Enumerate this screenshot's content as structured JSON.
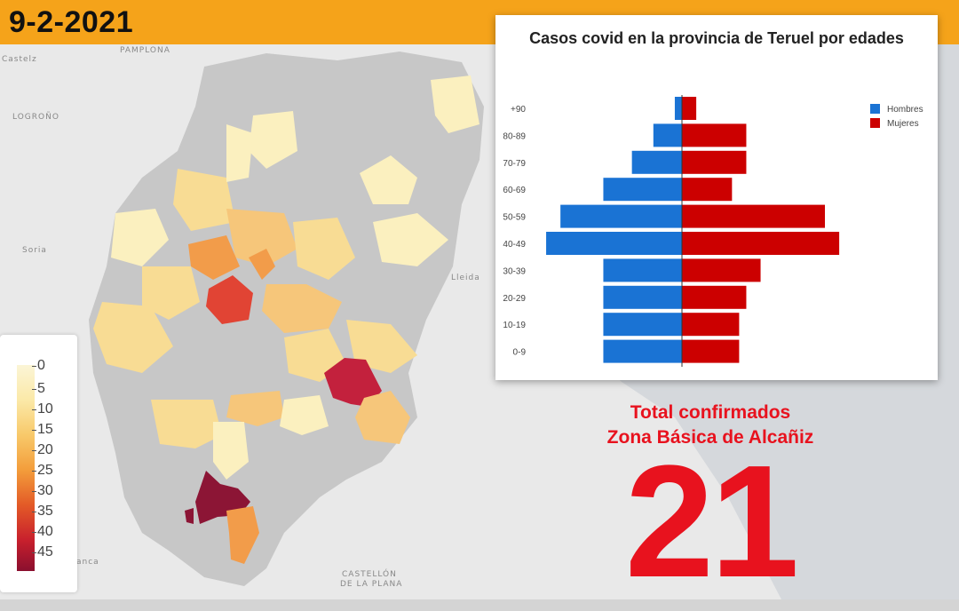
{
  "header": {
    "date": "9-2-2021"
  },
  "map": {
    "place_labels": [
      "PAMPLONA",
      "LOGROÑO",
      "Soria",
      "Lleida",
      "CASTELLÓN",
      "DE LA PLANA",
      "Castelz",
      "anca"
    ],
    "legend_ticks": [
      "0",
      "5",
      "10",
      "15",
      "20",
      "25",
      "30",
      "35",
      "40",
      "45"
    ],
    "colors": {
      "gray": "#c7c7c7",
      "light": "#fbf0bf",
      "yellow": "#f8dc94",
      "peach": "#f6c67a",
      "orange": "#f29c4a",
      "red": "#e14434",
      "crimson": "#c3213d",
      "darkred": "#8c1535"
    }
  },
  "chart_data": {
    "type": "bar",
    "orientation": "horizontal-pyramid",
    "title": "Casos covid en la provincia de Teruel por edades",
    "categories": [
      "+90",
      "80-89",
      "70-79",
      "60-69",
      "50-59",
      "40-49",
      "30-39",
      "20-29",
      "10-19",
      "0-9"
    ],
    "series": [
      {
        "name": "Hombres",
        "color": "#1a73d4",
        "values": [
          1,
          4,
          7,
          11,
          17,
          19,
          11,
          11,
          11,
          11
        ]
      },
      {
        "name": "Mujeres",
        "color": "#cc0000",
        "values": [
          2,
          9,
          9,
          7,
          20,
          22,
          11,
          9,
          8,
          8
        ]
      }
    ],
    "legend_position": "top-right",
    "grid": false
  },
  "summary": {
    "line1": "Total confirmados",
    "line2": "Zona Básica de Alcañiz",
    "value": "21"
  }
}
